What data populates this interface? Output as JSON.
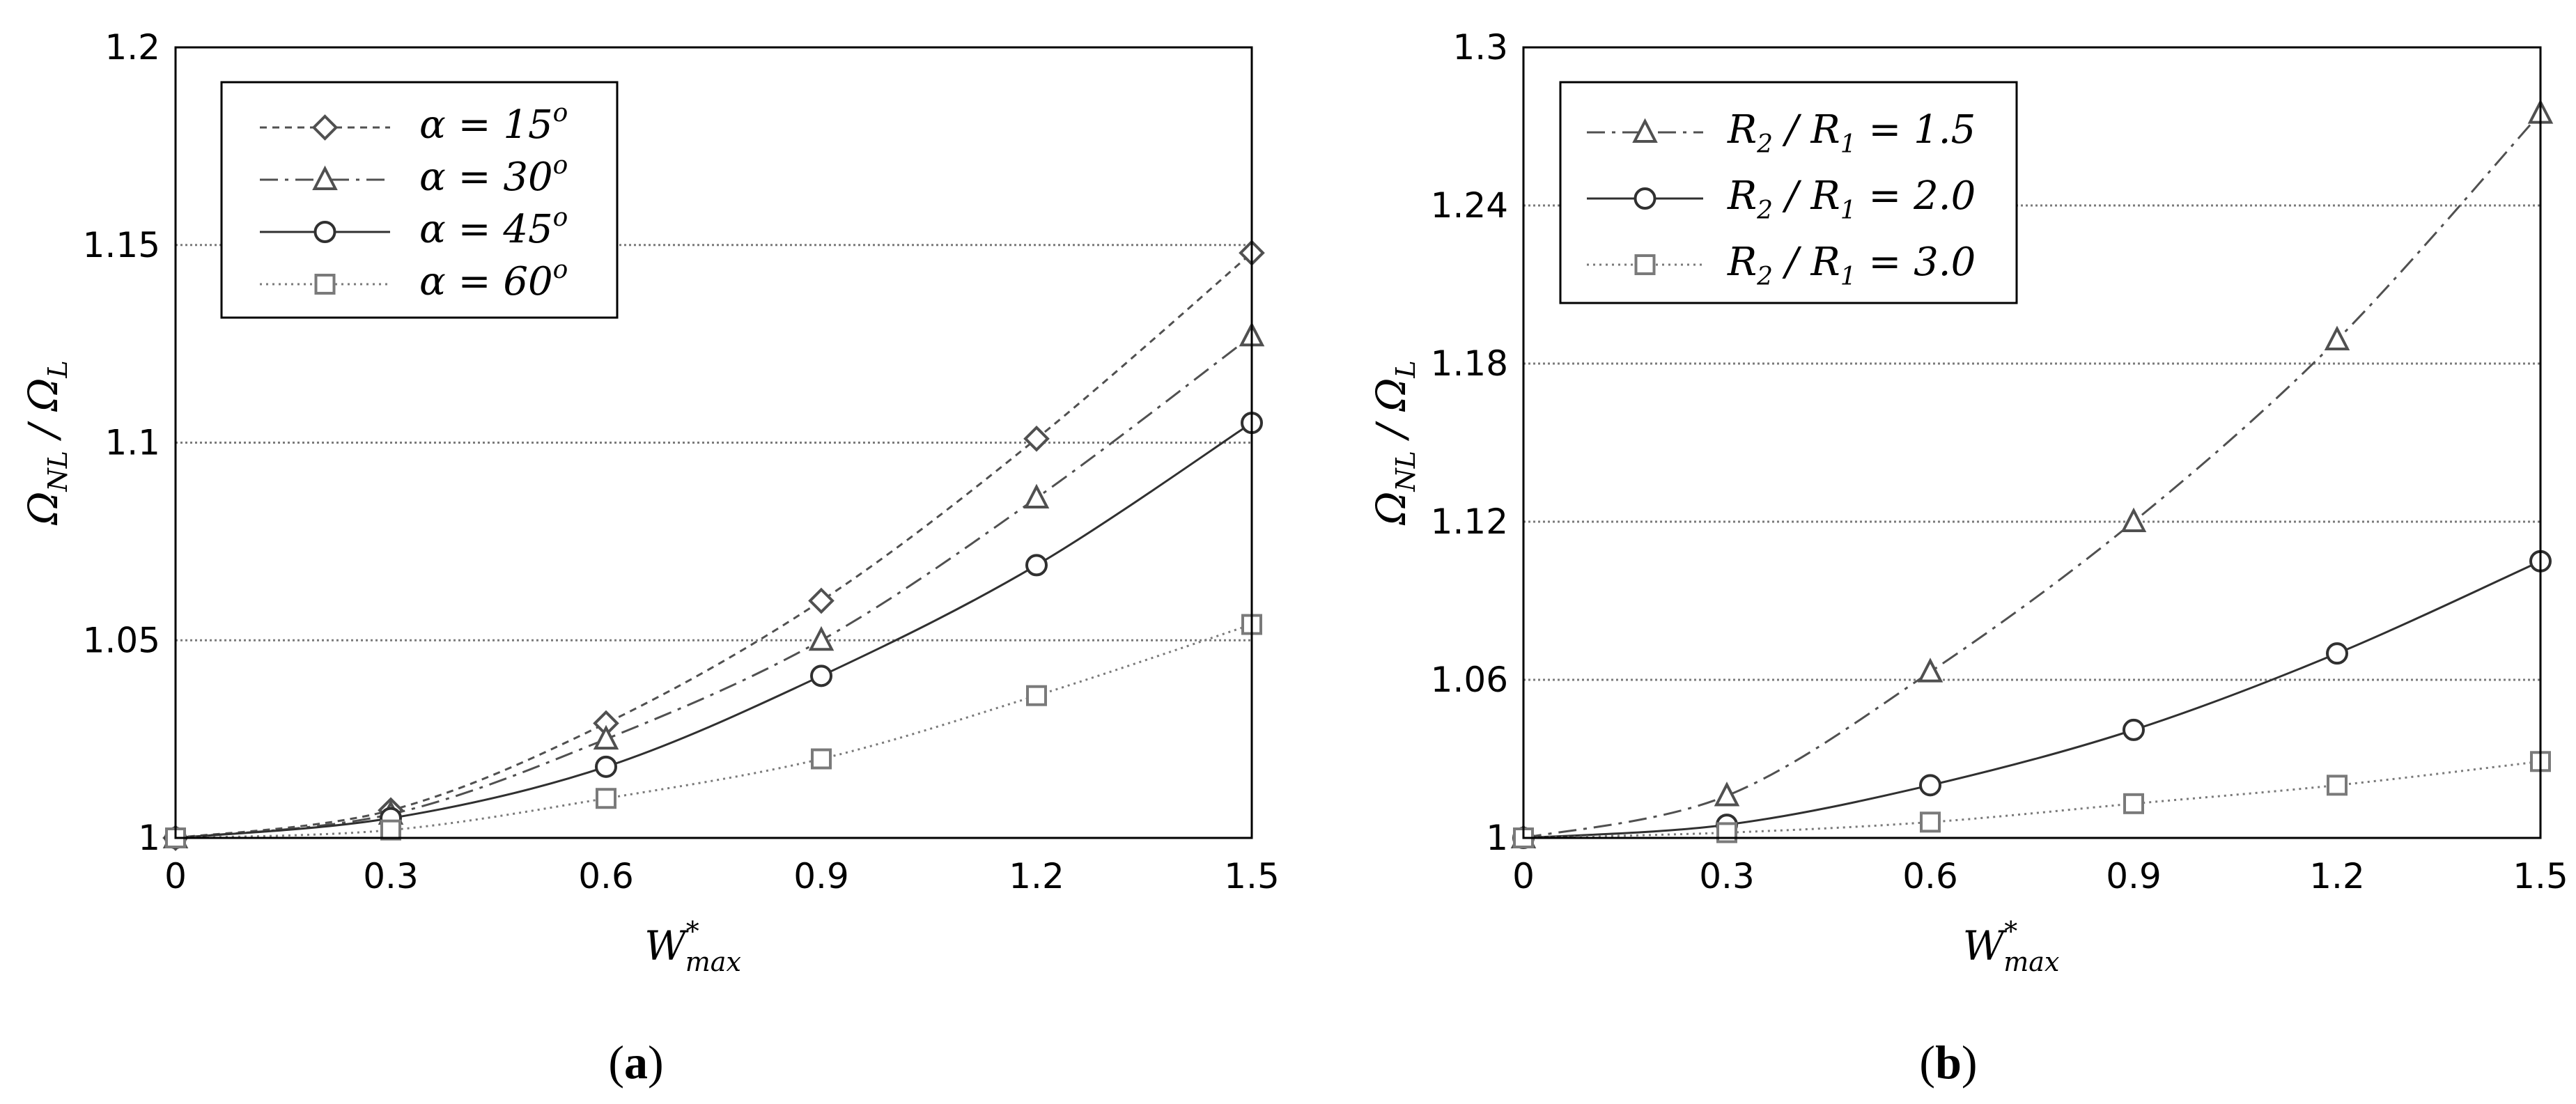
{
  "chart_data": [
    {
      "type": "line",
      "caption_letter": "a",
      "x": [
        0,
        0.3,
        0.6,
        0.9,
        1.2,
        1.5
      ],
      "xticks": [
        "0",
        "0.3",
        "0.6",
        "0.9",
        "1.2",
        "1.5"
      ],
      "xlim": [
        0,
        1.5
      ],
      "yticks": [
        "1",
        "1.05",
        "1.1",
        "1.15",
        "1.2"
      ],
      "ylim": [
        1,
        1.2
      ],
      "xlabel_main": "W",
      "xlabel_sup": "*",
      "xlabel_sub": "max",
      "ylabel_a": "Ω",
      "ylabel_a_sub": "NL",
      "ylabel_sep": " / ",
      "ylabel_b": "Ω",
      "ylabel_b_sub": "L",
      "grid": "horizontal dotted",
      "legend_position": "top-left",
      "series": [
        {
          "name": "α = 15°",
          "name_prefix": "α = 15",
          "name_sup": "o",
          "marker": "diamond",
          "dash": "10,8",
          "color": "#505050",
          "values": [
            1.0,
            1.007,
            1.029,
            1.06,
            1.101,
            1.148
          ]
        },
        {
          "name": "α = 30°",
          "name_prefix": "α = 30",
          "name_sup": "o",
          "marker": "triangle",
          "dash": "26,10,5,10",
          "color": "#505050",
          "values": [
            1.0,
            1.006,
            1.025,
            1.05,
            1.086,
            1.127
          ]
        },
        {
          "name": "α = 45°",
          "name_prefix": "α = 45",
          "name_sup": "o",
          "marker": "circle",
          "dash": "",
          "color": "#303030",
          "values": [
            1.0,
            1.005,
            1.018,
            1.041,
            1.069,
            1.105
          ]
        },
        {
          "name": "α = 60°",
          "name_prefix": "α = 60",
          "name_sup": "o",
          "marker": "square",
          "dash": "3,6",
          "color": "#7a7a7a",
          "values": [
            1.0,
            1.002,
            1.01,
            1.02,
            1.036,
            1.054
          ]
        }
      ]
    },
    {
      "type": "line",
      "caption_letter": "b",
      "x": [
        0,
        0.3,
        0.6,
        0.9,
        1.2,
        1.5
      ],
      "xticks": [
        "0",
        "0.3",
        "0.6",
        "0.9",
        "1.2",
        "1.5"
      ],
      "xlim": [
        0,
        1.5
      ],
      "yticks": [
        "1",
        "1.06",
        "1.12",
        "1.18",
        "1.24",
        "1.3"
      ],
      "ylim": [
        1,
        1.3
      ],
      "xlabel_main": "W",
      "xlabel_sup": "*",
      "xlabel_sub": "max",
      "ylabel_a": "Ω",
      "ylabel_a_sub": "NL",
      "ylabel_sep": " / ",
      "ylabel_b": "Ω",
      "ylabel_b_sub": "L",
      "grid": "horizontal dotted",
      "legend_position": "top-left",
      "series": [
        {
          "name": "R2 / R1 = 1.5",
          "label_r2": "R",
          "label_r2_sub": "2",
          "label_sep": " / ",
          "label_r1": "R",
          "label_r1_sub": "1",
          "label_val": " = 1.5",
          "marker": "triangle",
          "dash": "26,10,5,10",
          "color": "#505050",
          "values": [
            1.0,
            1.016,
            1.063,
            1.12,
            1.189,
            1.275
          ]
        },
        {
          "name": "R2 / R1 = 2.0",
          "label_r2": "R",
          "label_r2_sub": "2",
          "label_sep": " / ",
          "label_r1": "R",
          "label_r1_sub": "1",
          "label_val": " = 2.0",
          "marker": "circle",
          "dash": "",
          "color": "#303030",
          "values": [
            1.0,
            1.005,
            1.02,
            1.041,
            1.07,
            1.105
          ]
        },
        {
          "name": "R2 / R1 = 3.0",
          "label_r2": "R",
          "label_r2_sub": "2",
          "label_sep": " / ",
          "label_r1": "R",
          "label_r1_sub": "1",
          "label_val": " = 3.0",
          "marker": "square",
          "dash": "3,6",
          "color": "#7a7a7a",
          "values": [
            1.0,
            1.002,
            1.006,
            1.013,
            1.02,
            1.029
          ]
        }
      ]
    }
  ]
}
